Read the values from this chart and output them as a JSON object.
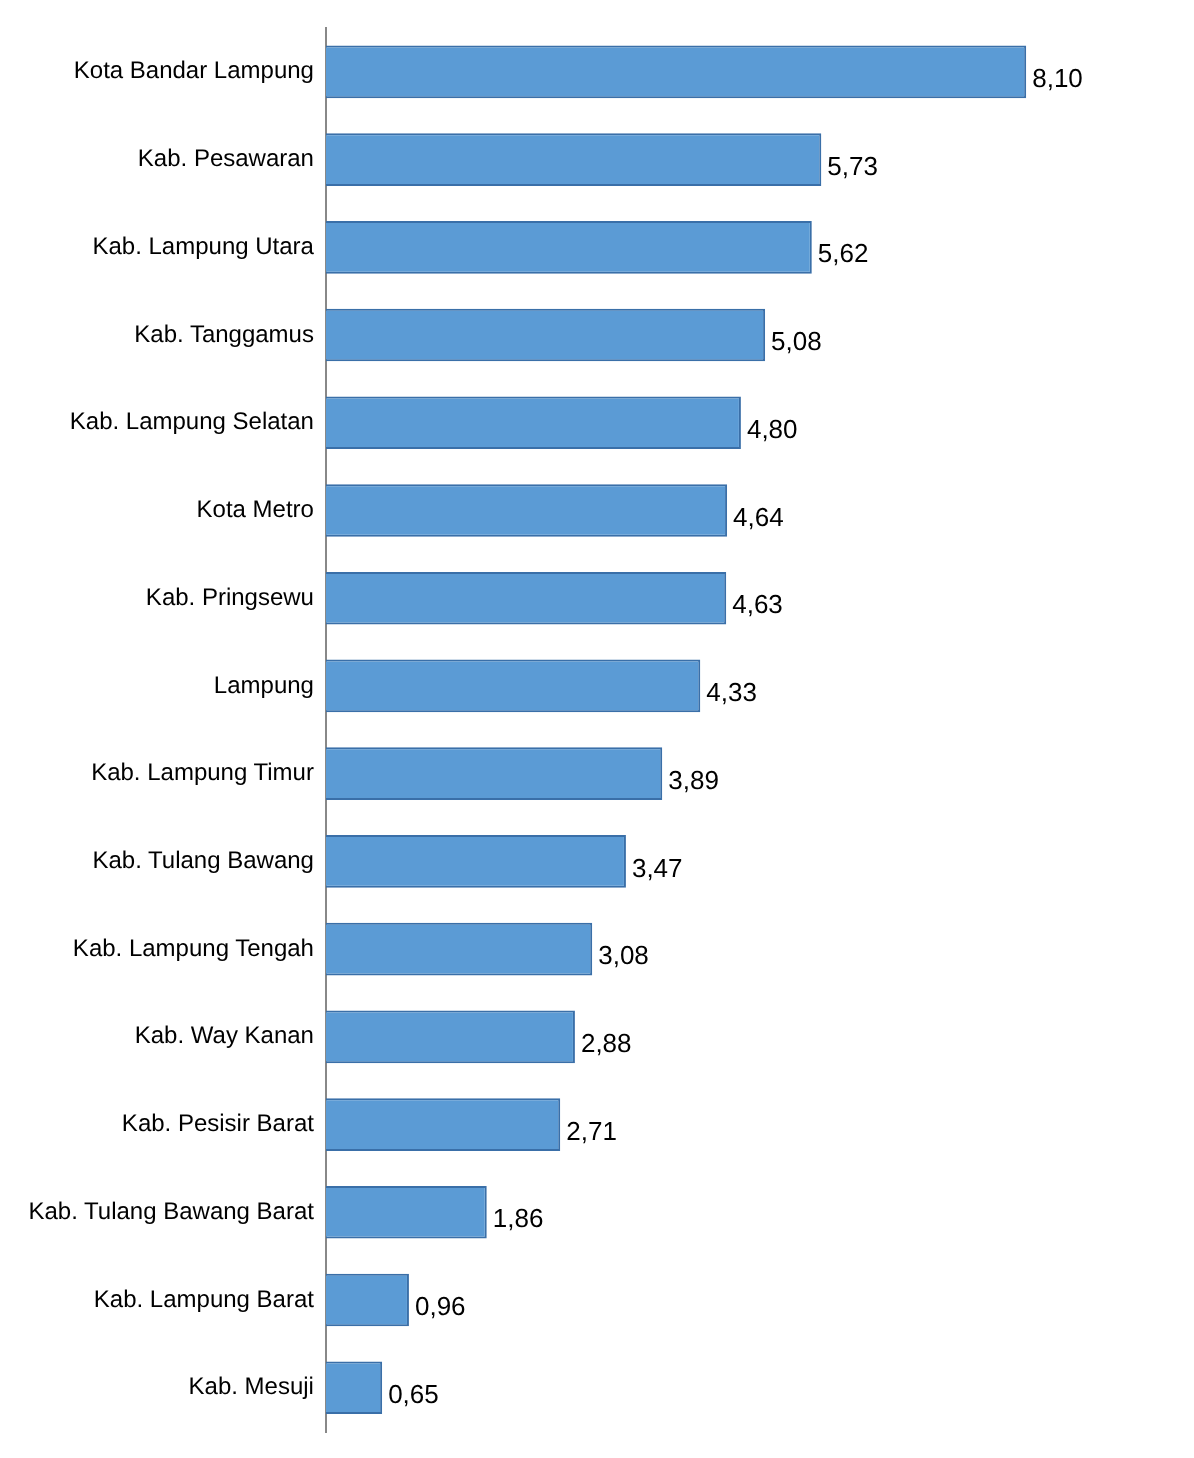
{
  "chart_data": {
    "type": "bar",
    "orientation": "horizontal",
    "categories": [
      "Kota Bandar Lampung",
      "Kab. Pesawaran",
      "Kab. Lampung Utara",
      "Kab. Tanggamus",
      "Kab. Lampung Selatan",
      "Kota Metro",
      "Kab. Pringsewu",
      "Lampung",
      "Kab. Lampung Timur",
      "Kab. Tulang Bawang",
      "Kab. Lampung Tengah",
      "Kab. Way Kanan",
      "Kab. Pesisir Barat",
      "Kab. Tulang Bawang Barat",
      "Kab. Lampung Barat",
      "Kab. Mesuji"
    ],
    "values": [
      8.1,
      5.73,
      5.62,
      5.08,
      4.8,
      4.64,
      4.63,
      4.33,
      3.89,
      3.47,
      3.08,
      2.88,
      2.71,
      1.86,
      0.96,
      0.65
    ],
    "value_labels": [
      "8,10",
      "5,73",
      "5,62",
      "5,08",
      "4,80",
      "4,64",
      "4,63",
      "4,33",
      "3,89",
      "3,47",
      "3,08",
      "2,88",
      "2,71",
      "1,86",
      "0,96",
      "0,65"
    ],
    "color": "#5b9bd5",
    "tick_labels": "y"
  }
}
